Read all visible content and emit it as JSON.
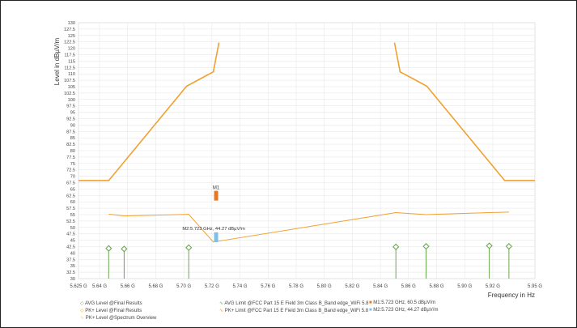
{
  "chart_data": {
    "type": "line",
    "title": "",
    "ylabel": "Level in dBµV/m",
    "xlabel": "Frequency in Hz",
    "ylim": [
      30,
      130
    ],
    "xlim": [
      5.625,
      5.95
    ],
    "grid": true,
    "y_ticks": [
      30,
      32.5,
      35,
      37.5,
      40,
      42.5,
      45,
      47.5,
      50,
      52.5,
      55,
      57.5,
      60,
      62.5,
      65,
      67.5,
      70,
      72.5,
      75,
      77.5,
      80,
      82.5,
      85,
      87.5,
      90,
      92.5,
      95,
      97.5,
      100,
      102.5,
      105,
      107.5,
      110,
      112.5,
      115,
      117.5,
      120,
      122.5,
      125,
      127.5,
      130
    ],
    "x_ticks": [
      {
        "x": 5.625,
        "label": "5.625 G"
      },
      {
        "x": 5.64,
        "label": "5.64 G"
      },
      {
        "x": 5.66,
        "label": "5.66 G"
      },
      {
        "x": 5.68,
        "label": "5.68 G"
      },
      {
        "x": 5.7,
        "label": "5.70 G"
      },
      {
        "x": 5.72,
        "label": "5.72 G"
      },
      {
        "x": 5.74,
        "label": "5.74 G"
      },
      {
        "x": 5.76,
        "label": "5.76 G"
      },
      {
        "x": 5.78,
        "label": "5.78 G"
      },
      {
        "x": 5.8,
        "label": "5.80 G"
      },
      {
        "x": 5.82,
        "label": "5.82 G"
      },
      {
        "x": 5.84,
        "label": "5.84 G"
      },
      {
        "x": 5.86,
        "label": "5.86 G"
      },
      {
        "x": 5.88,
        "label": "5.88 G"
      },
      {
        "x": 5.9,
        "label": "5.90 G"
      },
      {
        "x": 5.92,
        "label": "5.92 G"
      },
      {
        "x": 5.95,
        "label": "5.95 G"
      }
    ],
    "series": [
      {
        "name": "PK+ Limit @FCC Part 15 E Field 3m Class B_Band edge_WiFi 5.8",
        "color": "#f0a030",
        "segments": [
          [
            [
              5.625,
              68.3
            ],
            [
              5.6465,
              68.3
            ],
            [
              5.702,
              105.2
            ],
            [
              5.721,
              110.8
            ],
            [
              5.725,
              122.2
            ]
          ],
          [
            [
              5.85,
              122.2
            ],
            [
              5.854,
              110.8
            ],
            [
              5.873,
              105.2
            ],
            [
              5.9285,
              68.3
            ],
            [
              5.95,
              68.3
            ]
          ]
        ]
      },
      {
        "name": "PK+ Level @Spectrum Overview",
        "color": "#f5c88a",
        "points": [
          [
            5.625,
            58.5
          ],
          [
            5.64,
            58.8
          ],
          [
            5.66,
            59.0
          ],
          [
            5.68,
            59.2
          ],
          [
            5.7,
            59.6
          ],
          [
            5.715,
            60.0
          ],
          [
            5.722,
            61.2
          ],
          [
            5.726,
            62.0
          ],
          [
            5.729,
            63.0
          ],
          [
            5.731,
            65.0
          ],
          [
            5.7325,
            75.0
          ],
          [
            5.7335,
            95.0
          ],
          [
            5.7345,
            108.5
          ],
          [
            5.7355,
            112.0
          ],
          [
            5.737,
            111.0
          ],
          [
            5.739,
            109.0
          ],
          [
            5.741,
            108.0
          ],
          [
            5.743,
            110.0
          ],
          [
            5.745,
            108.5
          ],
          [
            5.747,
            109.5
          ],
          [
            5.749,
            109.0
          ],
          [
            5.751,
            110.5
          ],
          [
            5.7525,
            108.0
          ],
          [
            5.7535,
            95.0
          ],
          [
            5.7545,
            70.0
          ],
          [
            5.756,
            67.0
          ],
          [
            5.757,
            63.0
          ],
          [
            5.7585,
            67.5
          ],
          [
            5.7595,
            63.0
          ],
          [
            5.761,
            64.0
          ],
          [
            5.763,
            61.8
          ],
          [
            5.765,
            62.5
          ],
          [
            5.766,
            60.5
          ],
          [
            5.768,
            59.6
          ],
          [
            5.78,
            59.4
          ],
          [
            5.8,
            59.3
          ],
          [
            5.82,
            59.5
          ],
          [
            5.84,
            59.7
          ],
          [
            5.86,
            59.5
          ],
          [
            5.88,
            59.8
          ],
          [
            5.9,
            59.6
          ],
          [
            5.92,
            59.9
          ],
          [
            5.95,
            60.0
          ]
        ]
      },
      {
        "name": "PK+ Level @Final Results",
        "color": "#f0a030",
        "marker": "diamond-open",
        "points": [
          [
            5.6465,
            55.2
          ],
          [
            5.6575,
            54.5
          ],
          [
            5.7035,
            55.1
          ],
          [
            5.721,
            44.3
          ],
          [
            5.851,
            55.8
          ],
          [
            5.8725,
            55.0
          ],
          [
            5.9175,
            55.8
          ],
          [
            5.9315,
            56.0
          ]
        ]
      },
      {
        "name": "AVG Level @Final Results",
        "color": "#6aa84f",
        "marker": "diamond-open",
        "points": [
          [
            5.6465,
            41.8
          ],
          [
            5.6575,
            41.6
          ],
          [
            5.7035,
            42.1
          ],
          [
            5.851,
            42.4
          ],
          [
            5.8725,
            42.6
          ],
          [
            5.9175,
            42.8
          ],
          [
            5.9315,
            42.6
          ]
        ]
      }
    ],
    "markers": [
      {
        "label": "M1",
        "x": 5.723,
        "y": 60.5,
        "color": "#e87722"
      },
      {
        "label": "M2:5.723 GHz, 44.27 dBµV/m",
        "x": 5.723,
        "y": 44.27,
        "color": "#7cc0ea"
      }
    ],
    "legend": [
      {
        "text": "AVG Level @Final Results",
        "color": "#6aa84f",
        "shape": "diamond"
      },
      {
        "text": "PK+ Level @Final Results",
        "color": "#f0a030",
        "shape": "diamond"
      },
      {
        "text": "PK+ Level @Spectrum Overview",
        "color": "#f5c88a",
        "shape": "line"
      },
      {
        "text": "AVG Limit @FCC Part 15 E Field 3m Class B_Band edge_WiFi 5.8",
        "color": "#6aa84f",
        "shape": "line"
      },
      {
        "text": "PK+ Limit @FCC Part 15 E Field 3m Class B_Band edge_WiFi 5.8",
        "color": "#f0a030",
        "shape": "line"
      },
      {
        "text": "M1:5.723 GHz, 60.5 dBµV/m",
        "color": "#e87722",
        "shape": "square"
      },
      {
        "text": "M2:5.723 GHz, 44.27 dBµV/m",
        "color": "#7cc0ea",
        "shape": "square"
      }
    ]
  }
}
